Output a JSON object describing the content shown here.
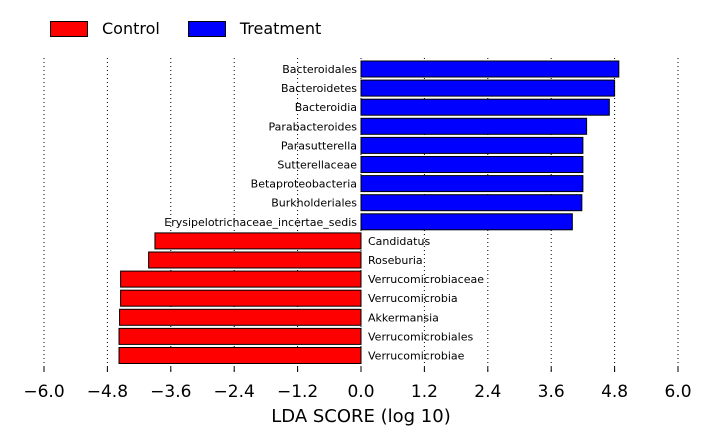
{
  "chart_data": {
    "type": "bar",
    "orientation": "horizontal",
    "xlabel": "LDA SCORE (log 10)",
    "xlim": [
      -6.0,
      6.0
    ],
    "xticks": [
      -6.0,
      -4.8,
      -3.6,
      -2.4,
      -1.2,
      0.0,
      1.2,
      2.4,
      3.6,
      4.8,
      6.0
    ],
    "xtick_labels": [
      "−6.0",
      "−4.8",
      "−3.6",
      "−2.4",
      "−1.2",
      "0.0",
      "1.2",
      "2.4",
      "3.6",
      "4.8",
      "6.0"
    ],
    "grid": "vertical dotted",
    "legend": [
      {
        "name": "Control",
        "color": "#ff0000"
      },
      {
        "name": "Treatment",
        "color": "#0000ff"
      }
    ],
    "categories": [
      "Bacteroidales",
      "Bacteroidetes",
      "Bacteroidia",
      "Parabacteroides",
      "Parasutterella",
      "Sutterellaceae",
      "Betaproteobacteria",
      "Burkholderiales",
      "Erysipelotrichaceae_incertae_sedis",
      "Candidatus",
      "Roseburia",
      "Verrucomicrobiaceae",
      "Verrucomicrobia",
      "Akkermansia",
      "Verrucomicrobiales",
      "Verrucomicrobiae"
    ],
    "values": [
      4.88,
      4.8,
      4.7,
      4.27,
      4.2,
      4.2,
      4.2,
      4.18,
      4.0,
      -3.9,
      -4.02,
      -4.55,
      -4.55,
      -4.57,
      -4.58,
      -4.58
    ],
    "groups": [
      "Treatment",
      "Treatment",
      "Treatment",
      "Treatment",
      "Treatment",
      "Treatment",
      "Treatment",
      "Treatment",
      "Treatment",
      "Control",
      "Control",
      "Control",
      "Control",
      "Control",
      "Control",
      "Control"
    ]
  }
}
